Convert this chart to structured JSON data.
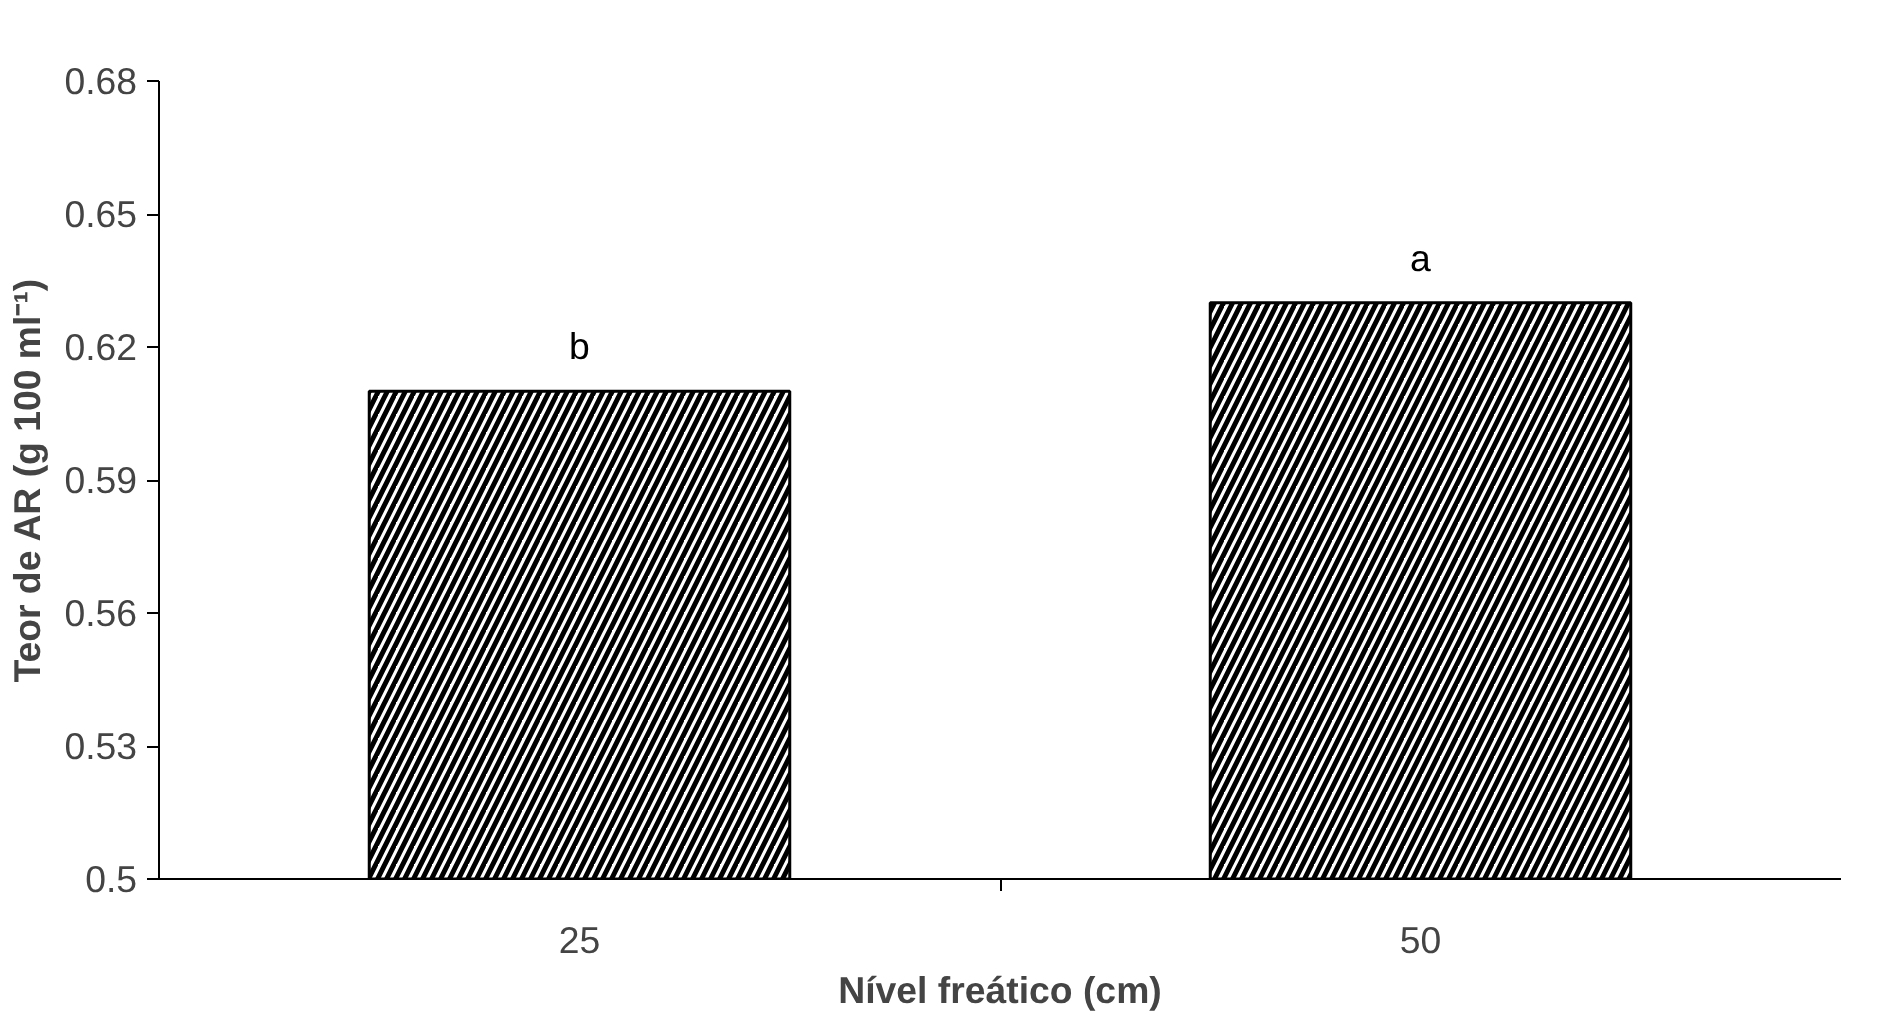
{
  "chart_data": {
    "type": "bar",
    "xlabel": "Nível freático (cm)",
    "ylabel": "Teor de AR (g 100 ml⁻¹)",
    "categories": [
      "25",
      "50"
    ],
    "values": [
      0.61,
      0.63
    ],
    "color": "#000000",
    "ylim": [
      0.5,
      0.68
    ],
    "yticks": [
      0.5,
      0.53,
      0.56,
      0.59,
      0.62,
      0.65,
      0.68
    ],
    "annotations": [
      {
        "text": "b",
        "x": "25",
        "y": 0.61
      },
      {
        "text": "a",
        "x": "50",
        "y": 0.63
      }
    ]
  }
}
